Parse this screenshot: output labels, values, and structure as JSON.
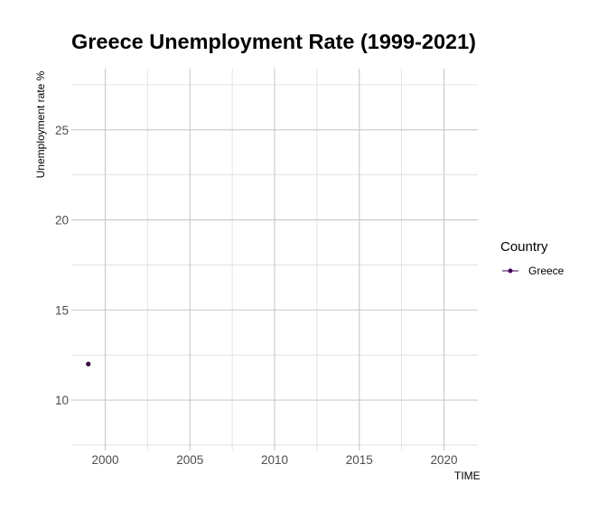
{
  "chart_data": {
    "type": "line",
    "title": "Greece Unemployment Rate (1999-2021)",
    "xlabel": "TIME",
    "ylabel": "Unemployment rate %",
    "xlim": [
      1998,
      2022
    ],
    "ylim": [
      7.2,
      28.4
    ],
    "x_ticks": [
      2000,
      2005,
      2010,
      2015,
      2020
    ],
    "y_ticks": [
      10,
      15,
      20,
      25
    ],
    "grid": true,
    "legend": {
      "title": "Country",
      "placement": "right"
    },
    "series": [
      {
        "name": "Greece",
        "color": "#440154",
        "x": [
          1999
        ],
        "values": [
          12.0
        ]
      }
    ]
  }
}
